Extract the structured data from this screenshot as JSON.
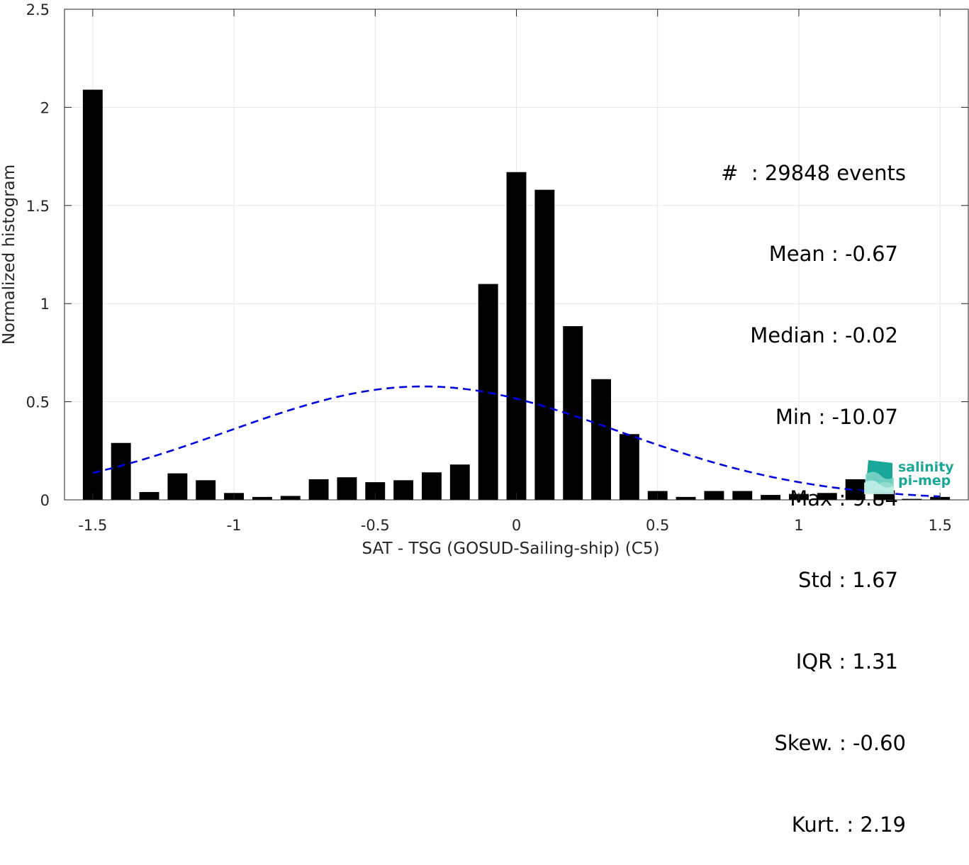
{
  "chart_data": {
    "type": "bar",
    "xlabel": "SAT - TSG (GOSUD-Sailing-ship) (C5)",
    "ylabel": "Normalized histogram",
    "xlim": [
      -1.6,
      1.6
    ],
    "ylim": [
      0,
      2.5
    ],
    "xticks": [
      -1.5,
      -1,
      -0.5,
      0,
      0.5,
      1,
      1.5
    ],
    "xtick_labels": [
      "-1.5",
      "-1",
      "-0.5",
      "0",
      "0.5",
      "1",
      "1.5"
    ],
    "yticks": [
      0,
      0.5,
      1,
      1.5,
      2,
      2.5
    ],
    "ytick_labels": [
      "0",
      "0.5",
      "1",
      "1.5",
      "2",
      "2.5"
    ],
    "grid": true,
    "bar_width": 0.07,
    "x": [
      -1.5,
      -1.4,
      -1.3,
      -1.2,
      -1.1,
      -1.0,
      -0.9,
      -0.8,
      -0.7,
      -0.6,
      -0.5,
      -0.4,
      -0.3,
      -0.2,
      -0.1,
      0.0,
      0.1,
      0.2,
      0.3,
      0.4,
      0.5,
      0.6,
      0.7,
      0.8,
      0.9,
      1.0,
      1.1,
      1.2,
      1.3,
      1.4,
      1.5
    ],
    "values": [
      2.09,
      0.29,
      0.04,
      0.135,
      0.1,
      0.035,
      0.015,
      0.02,
      0.105,
      0.115,
      0.09,
      0.1,
      0.14,
      0.18,
      1.1,
      1.67,
      1.58,
      0.885,
      0.615,
      0.335,
      0.045,
      0.015,
      0.045,
      0.045,
      0.025,
      0.03,
      0.035,
      0.105,
      0.035,
      0.005,
      0.015
    ],
    "fit_curve": {
      "style": "dashed",
      "color": "#0000e6",
      "mean": -0.33,
      "peak": 0.578,
      "sigma": 0.69,
      "x_range": [
        -1.5,
        1.5
      ]
    },
    "bar_color": "#000000",
    "annotation_lines": [
      "#  : 29848 events",
      "Mean : -0.67",
      "Median : -0.02",
      "Min : -10.07",
      "Max : 9.84",
      "Std : 1.67",
      "IQR : 1.31",
      "Skew. : -0.60",
      "Kurt. : 2.19"
    ]
  },
  "logo": {
    "line1": "salinity",
    "line2": "pi-mep",
    "color": "#1aa79a"
  }
}
